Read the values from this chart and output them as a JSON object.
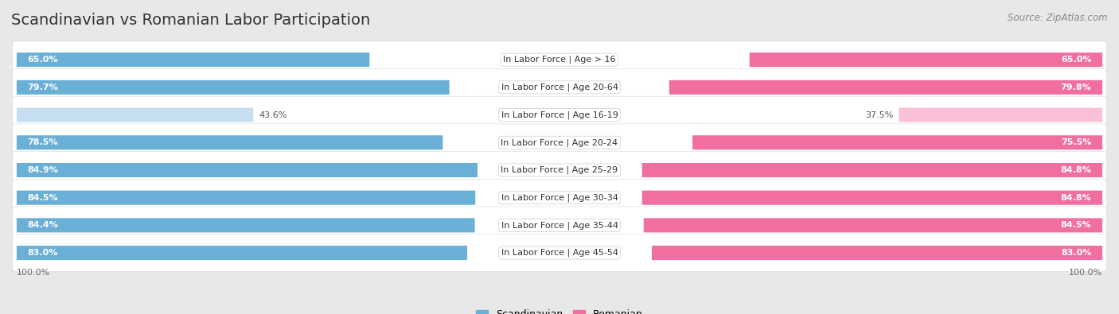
{
  "title": "Scandinavian vs Romanian Labor Participation",
  "source": "Source: ZipAtlas.com",
  "categories": [
    "In Labor Force | Age > 16",
    "In Labor Force | Age 20-64",
    "In Labor Force | Age 16-19",
    "In Labor Force | Age 20-24",
    "In Labor Force | Age 25-29",
    "In Labor Force | Age 30-34",
    "In Labor Force | Age 35-44",
    "In Labor Force | Age 45-54"
  ],
  "scandinavian_values": [
    65.0,
    79.7,
    43.6,
    78.5,
    84.9,
    84.5,
    84.4,
    83.0
  ],
  "romanian_values": [
    65.0,
    79.8,
    37.5,
    75.5,
    84.8,
    84.8,
    84.5,
    83.0
  ],
  "scandinavian_color": "#6aafd6",
  "romanian_color": "#f06fa0",
  "scandinavian_light_color": "#c5dff0",
  "romanian_light_color": "#f9c0d8",
  "background_color": "#e8e8e8",
  "row_bg_color": "#f2f2f2",
  "max_value": 100.0,
  "title_fontsize": 14,
  "label_fontsize": 8,
  "value_fontsize": 8,
  "legend_fontsize": 9,
  "source_fontsize": 8.5
}
